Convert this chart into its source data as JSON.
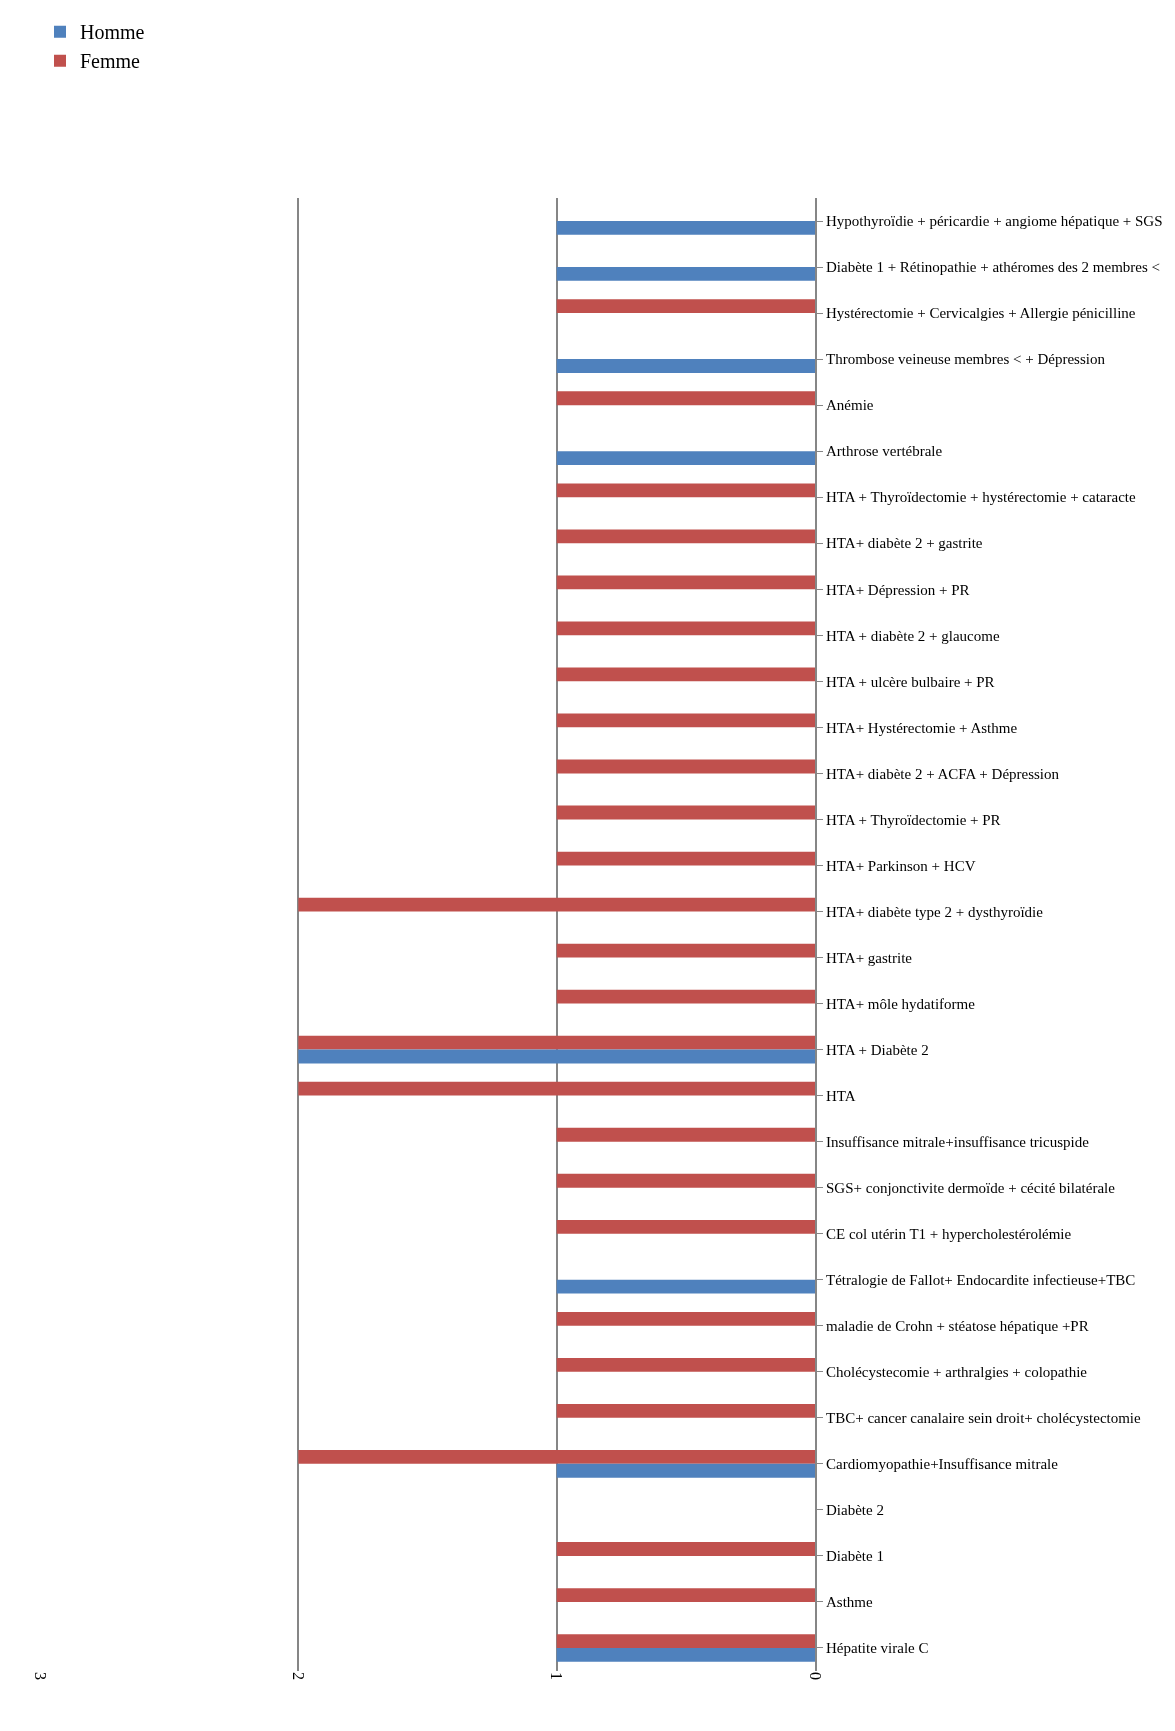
{
  "chart_data": {
    "type": "bar",
    "orientation": "horizontal",
    "categories": [
      "Hypothyroïdie + péricardie + angiome hépatique + SGS",
      "Diabète 1 + Rétinopathie + athéromes des 2 membres <",
      "Hystérectomie + Cervicalgies + Allergie pénicilline",
      "Thrombose veineuse membres < + Dépression",
      "Anémie",
      "Arthrose vertébrale",
      "HTA + Thyroïdectomie + hystérectomie + cataracte",
      "HTA+ diabète 2 + gastrite",
      "HTA+ Dépression + PR",
      "HTA + diabète 2 + glaucome",
      "HTA + ulcère bulbaire + PR",
      "HTA+ Hystérectomie + Asthme",
      "HTA+ diabète 2 + ACFA + Dépression",
      "HTA + Thyroïdectomie + PR",
      "HTA+ Parkinson + HCV",
      "HTA+ diabète type 2 + dysthyroïdie",
      "HTA+ gastrite",
      "HTA+ môle hydatiforme",
      "HTA + Diabète 2",
      "HTA",
      "Insuffisance mitrale+insuffisance tricuspide",
      "SGS+ conjonctivite dermoïde + cécité bilatérale",
      "CE col utérin T1 + hypercholestérolémie",
      "Tétralogie de Fallot+ Endocardite infectieuse+TBC",
      "maladie de Crohn + stéatose hépatique +PR",
      "Cholécystecomie + arthralgies + colopathie",
      "TBC+ cancer canalaire sein droit+ cholécystectomie",
      "Cardiomyopathie+Insuffisance mitrale",
      "Diabète 2",
      "Diabète 1",
      "Asthme",
      "Hépatite virale C"
    ],
    "series": [
      {
        "name": "Femme",
        "color": "#c0504d",
        "values": [
          null,
          null,
          1,
          null,
          1,
          null,
          1,
          1,
          1,
          1,
          1,
          1,
          1,
          1,
          1,
          2,
          1,
          1,
          2,
          2,
          1,
          1,
          1,
          null,
          1,
          1,
          1,
          2,
          null,
          1,
          1,
          1
        ]
      },
      {
        "name": "Homme",
        "color": "#4f81bd",
        "values": [
          1,
          1,
          null,
          1,
          null,
          1,
          null,
          null,
          null,
          null,
          null,
          null,
          null,
          null,
          null,
          null,
          null,
          null,
          2,
          null,
          null,
          null,
          null,
          1,
          null,
          null,
          null,
          1,
          null,
          null,
          null,
          1
        ]
      }
    ],
    "xlim": [
      3,
      0
    ],
    "xticks": [
      0,
      1,
      2,
      3
    ],
    "grid": "x",
    "legend": "top left"
  }
}
